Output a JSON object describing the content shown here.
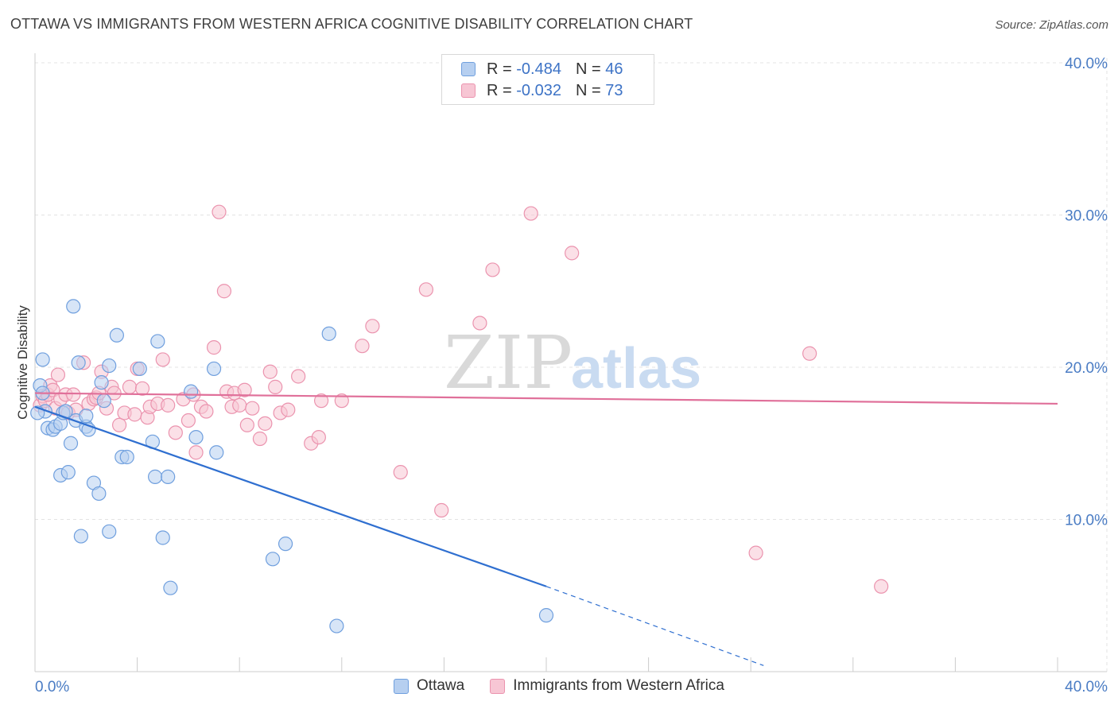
{
  "title": "OTTAWA VS IMMIGRANTS FROM WESTERN AFRICA COGNITIVE DISABILITY CORRELATION CHART",
  "source": "Source: ZipAtlas.com",
  "watermark": {
    "zip": "ZIP",
    "atlas": "atlas"
  },
  "colors": {
    "ottawa_fill": "#b6cff0",
    "ottawa_stroke": "#6f9fde",
    "ottawa_line": "#2f6fd0",
    "wa_fill": "#f7c6d4",
    "wa_stroke": "#eb93ae",
    "wa_line": "#e0709a",
    "grid": "#e3e3e3",
    "axis": "#cccccc",
    "tick_text": "#4a7cc4"
  },
  "legend_top": [
    {
      "series": "Ottawa",
      "r_label": "R = ",
      "r_value": "-0.484",
      "n_label": "N = ",
      "n_value": "46"
    },
    {
      "series": "Immigrants from Western Africa",
      "r_label": "R = ",
      "r_value": "-0.032",
      "n_label": "N = ",
      "n_value": "73"
    }
  ],
  "chart_data": {
    "type": "scatter",
    "xlabel": "",
    "ylabel": "Cognitive Disability",
    "xlim": [
      0,
      40
    ],
    "ylim": [
      0,
      40
    ],
    "x_tick_labels": [
      "0.0%",
      "40.0%"
    ],
    "y_ticks": [
      10,
      20,
      30,
      40
    ],
    "y_tick_labels": [
      "10.0%",
      "20.0%",
      "30.0%",
      "40.0%"
    ],
    "grid": true,
    "legend_position": "bottom-center",
    "series": [
      {
        "name": "Ottawa",
        "points": [
          [
            0.2,
            18.8
          ],
          [
            0.3,
            20.5
          ],
          [
            0.3,
            18.3
          ],
          [
            0.4,
            17.1
          ],
          [
            0.5,
            16.0
          ],
          [
            0.7,
            15.9
          ],
          [
            0.8,
            16.1
          ],
          [
            1.0,
            16.3
          ],
          [
            1.0,
            12.9
          ],
          [
            1.1,
            17.0
          ],
          [
            1.2,
            17.1
          ],
          [
            1.3,
            13.1
          ],
          [
            1.4,
            15.0
          ],
          [
            1.5,
            24.0
          ],
          [
            1.6,
            16.5
          ],
          [
            1.7,
            20.3
          ],
          [
            1.8,
            8.9
          ],
          [
            2.0,
            16.1
          ],
          [
            2.0,
            16.8
          ],
          [
            2.1,
            15.9
          ],
          [
            2.3,
            12.4
          ],
          [
            2.5,
            11.7
          ],
          [
            2.6,
            19.0
          ],
          [
            2.7,
            17.8
          ],
          [
            2.9,
            20.1
          ],
          [
            2.9,
            9.2
          ],
          [
            3.2,
            22.1
          ],
          [
            3.4,
            14.1
          ],
          [
            3.6,
            14.1
          ],
          [
            4.1,
            19.9
          ],
          [
            4.6,
            15.1
          ],
          [
            4.7,
            12.8
          ],
          [
            4.8,
            21.7
          ],
          [
            5.0,
            8.8
          ],
          [
            5.2,
            12.8
          ],
          [
            5.3,
            5.5
          ],
          [
            6.1,
            18.4
          ],
          [
            6.3,
            15.4
          ],
          [
            7.0,
            19.9
          ],
          [
            7.1,
            14.4
          ],
          [
            9.3,
            7.4
          ],
          [
            9.8,
            8.4
          ],
          [
            11.5,
            22.2
          ],
          [
            11.8,
            3.0
          ],
          [
            20.0,
            3.7
          ],
          [
            0.1,
            17.0
          ]
        ]
      },
      {
        "name": "Immigrants from Western Africa",
        "points": [
          [
            0.2,
            17.5
          ],
          [
            0.3,
            18.1
          ],
          [
            0.4,
            17.8
          ],
          [
            0.5,
            18.2
          ],
          [
            0.6,
            18.8
          ],
          [
            0.7,
            18.5
          ],
          [
            0.8,
            17.3
          ],
          [
            0.9,
            19.5
          ],
          [
            1.0,
            17.9
          ],
          [
            1.2,
            18.2
          ],
          [
            1.3,
            17.0
          ],
          [
            1.5,
            18.2
          ],
          [
            1.6,
            17.2
          ],
          [
            1.9,
            20.3
          ],
          [
            2.1,
            17.6
          ],
          [
            2.3,
            17.9
          ],
          [
            2.4,
            18.0
          ],
          [
            2.5,
            18.3
          ],
          [
            2.6,
            19.7
          ],
          [
            2.8,
            17.3
          ],
          [
            3.0,
            18.7
          ],
          [
            3.1,
            18.3
          ],
          [
            3.3,
            16.2
          ],
          [
            3.5,
            17.0
          ],
          [
            3.7,
            18.7
          ],
          [
            3.9,
            16.9
          ],
          [
            4.0,
            19.9
          ],
          [
            4.2,
            18.6
          ],
          [
            4.4,
            16.7
          ],
          [
            4.5,
            17.4
          ],
          [
            4.8,
            17.6
          ],
          [
            5.0,
            20.5
          ],
          [
            5.2,
            17.5
          ],
          [
            5.5,
            15.7
          ],
          [
            5.8,
            17.9
          ],
          [
            6.0,
            16.5
          ],
          [
            6.2,
            18.2
          ],
          [
            6.3,
            14.4
          ],
          [
            6.5,
            17.4
          ],
          [
            6.7,
            17.1
          ],
          [
            7.0,
            21.3
          ],
          [
            7.2,
            30.2
          ],
          [
            7.4,
            25.0
          ],
          [
            7.5,
            18.4
          ],
          [
            7.7,
            17.4
          ],
          [
            7.8,
            18.3
          ],
          [
            8.0,
            17.5
          ],
          [
            8.2,
            18.5
          ],
          [
            8.3,
            16.2
          ],
          [
            8.5,
            17.3
          ],
          [
            8.8,
            15.3
          ],
          [
            9.0,
            16.3
          ],
          [
            9.2,
            19.7
          ],
          [
            9.4,
            18.7
          ],
          [
            9.6,
            17.0
          ],
          [
            9.9,
            17.2
          ],
          [
            10.3,
            19.4
          ],
          [
            10.8,
            15.0
          ],
          [
            11.1,
            15.4
          ],
          [
            11.2,
            17.8
          ],
          [
            12.0,
            17.8
          ],
          [
            12.8,
            21.4
          ],
          [
            13.2,
            22.7
          ],
          [
            14.3,
            13.1
          ],
          [
            15.3,
            25.1
          ],
          [
            15.9,
            10.6
          ],
          [
            17.4,
            22.9
          ],
          [
            17.9,
            26.4
          ],
          [
            19.4,
            30.1
          ],
          [
            21.0,
            27.5
          ],
          [
            28.2,
            7.8
          ],
          [
            30.3,
            20.9
          ],
          [
            33.1,
            5.6
          ]
        ]
      }
    ],
    "trendlines": [
      {
        "series": "Ottawa",
        "x": [
          0,
          20
        ],
        "y": [
          17.4,
          5.6
        ],
        "dashed_to": [
          28.5,
          0.4
        ]
      },
      {
        "series": "Immigrants from Western Africa",
        "x": [
          0,
          40
        ],
        "y": [
          18.3,
          17.6
        ]
      }
    ]
  }
}
